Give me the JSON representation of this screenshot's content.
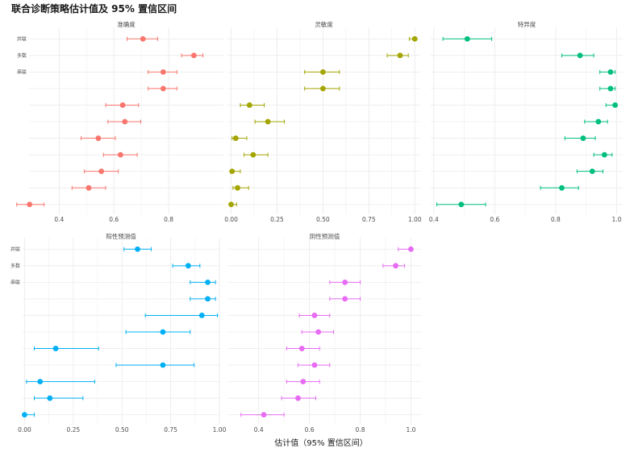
{
  "title": "联合诊断策略估计值及 95% 置信区间",
  "xlabel": "估计值（95% 置信区间）",
  "colors": {
    "sensitivity": "#f8766d",
    "recall": "#a3a500",
    "specificity": "#00bf7d",
    "ppv": "#00b0f6",
    "npv": "#e76bf3",
    "grid": "#ebebeb"
  },
  "y_labels": [
    "并联",
    "多数",
    "串联",
    "",
    "",
    "",
    "",
    "",
    "",
    "",
    ""
  ],
  "chart_data": [
    {
      "type": "scatter",
      "panel": "准确度",
      "color_key": "sensitivity",
      "xlim": [
        0.29,
        1.0
      ],
      "xticks": [
        0.4,
        0.6,
        0.8
      ],
      "xtick_labels": [
        "0.4",
        "0.6",
        "0.8"
      ],
      "points": [
        {
          "est": 0.706,
          "lo": 0.648,
          "hi": 0.76
        },
        {
          "est": 0.892,
          "lo": 0.847,
          "hi": 0.925
        },
        {
          "est": 0.78,
          "lo": 0.725,
          "hi": 0.83
        },
        {
          "est": 0.78,
          "lo": 0.725,
          "hi": 0.83
        },
        {
          "est": 0.632,
          "lo": 0.57,
          "hi": 0.69
        },
        {
          "est": 0.64,
          "lo": 0.578,
          "hi": 0.698
        },
        {
          "est": 0.543,
          "lo": 0.48,
          "hi": 0.605
        },
        {
          "est": 0.624,
          "lo": 0.562,
          "hi": 0.685
        },
        {
          "est": 0.554,
          "lo": 0.492,
          "hi": 0.616
        },
        {
          "est": 0.508,
          "lo": 0.447,
          "hi": 0.57
        },
        {
          "est": 0.292,
          "lo": 0.245,
          "hi": 0.345
        }
      ]
    },
    {
      "type": "scatter",
      "panel": "灵敏度",
      "color_key": "recall",
      "xlim": [
        -0.02,
        1.03
      ],
      "xticks": [
        0.0,
        0.25,
        0.5,
        0.75,
        1.0
      ],
      "xtick_labels": [
        "0.00",
        "0.25",
        "0.50",
        "0.75",
        "1.00"
      ],
      "points": [
        {
          "est": 1.0,
          "lo": 0.97,
          "hi": 1.0
        },
        {
          "est": 0.92,
          "lo": 0.85,
          "hi": 0.965
        },
        {
          "est": 0.5,
          "lo": 0.4,
          "hi": 0.59
        },
        {
          "est": 0.5,
          "lo": 0.4,
          "hi": 0.59
        },
        {
          "est": 0.1,
          "lo": 0.05,
          "hi": 0.18
        },
        {
          "est": 0.2,
          "lo": 0.13,
          "hi": 0.29
        },
        {
          "est": 0.025,
          "lo": 0.005,
          "hi": 0.085
        },
        {
          "est": 0.12,
          "lo": 0.07,
          "hi": 0.2
        },
        {
          "est": 0.005,
          "lo": 0.0,
          "hi": 0.05
        },
        {
          "est": 0.035,
          "lo": 0.01,
          "hi": 0.095
        },
        {
          "est": 0.0,
          "lo": 0.0,
          "hi": 0.03
        }
      ]
    },
    {
      "type": "scatter",
      "panel": "特异度",
      "color_key": "specificity",
      "xlim": [
        0.39,
        1.02
      ],
      "xticks": [
        0.4,
        0.6,
        0.8,
        1.0
      ],
      "xtick_labels": [
        "0.4",
        "0.6",
        "0.8",
        "1.0"
      ],
      "points": [
        {
          "est": 0.51,
          "lo": 0.43,
          "hi": 0.59
        },
        {
          "est": 0.88,
          "lo": 0.82,
          "hi": 0.925
        },
        {
          "est": 0.98,
          "lo": 0.945,
          "hi": 0.995
        },
        {
          "est": 0.98,
          "lo": 0.945,
          "hi": 0.995
        },
        {
          "est": 0.995,
          "lo": 0.965,
          "hi": 1.0
        },
        {
          "est": 0.94,
          "lo": 0.895,
          "hi": 0.97
        },
        {
          "est": 0.89,
          "lo": 0.83,
          "hi": 0.93
        },
        {
          "est": 0.96,
          "lo": 0.925,
          "hi": 0.985
        },
        {
          "est": 0.92,
          "lo": 0.87,
          "hi": 0.955
        },
        {
          "est": 0.82,
          "lo": 0.75,
          "hi": 0.875
        },
        {
          "est": 0.49,
          "lo": 0.41,
          "hi": 0.57
        }
      ]
    },
    {
      "type": "scatter",
      "panel": "阳性预测值",
      "color_key": "ppv",
      "xlim": [
        -0.01,
        1.0
      ],
      "xticks": [
        0.0,
        0.25,
        0.5,
        0.75,
        1.0
      ],
      "xtick_labels": [
        "0.00",
        "0.25",
        "0.50",
        "0.75",
        "1.00"
      ],
      "points": [
        {
          "est": 0.58,
          "lo": 0.51,
          "hi": 0.65
        },
        {
          "est": 0.84,
          "lo": 0.76,
          "hi": 0.9
        },
        {
          "est": 0.94,
          "lo": 0.85,
          "hi": 0.98
        },
        {
          "est": 0.94,
          "lo": 0.85,
          "hi": 0.98
        },
        {
          "est": 0.91,
          "lo": 0.62,
          "hi": 0.99
        },
        {
          "est": 0.71,
          "lo": 0.52,
          "hi": 0.85
        },
        {
          "est": 0.16,
          "lo": 0.05,
          "hi": 0.38
        },
        {
          "est": 0.71,
          "lo": 0.47,
          "hi": 0.87
        },
        {
          "est": 0.08,
          "lo": 0.01,
          "hi": 0.36
        },
        {
          "est": 0.13,
          "lo": 0.05,
          "hi": 0.3
        },
        {
          "est": 0.0,
          "lo": 0.0,
          "hi": 0.05
        }
      ]
    },
    {
      "type": "scatter",
      "panel": "阴性预测值",
      "color_key": "npv",
      "xlim": [
        0.28,
        1.04
      ],
      "xticks": [
        0.4,
        0.6,
        0.8,
        1.0
      ],
      "xtick_labels": [
        "0.4",
        "0.6",
        "0.8",
        "1.0"
      ],
      "points": [
        {
          "est": 1.0,
          "lo": 0.95,
          "hi": 1.0
        },
        {
          "est": 0.94,
          "lo": 0.89,
          "hi": 0.975
        },
        {
          "est": 0.74,
          "lo": 0.68,
          "hi": 0.8
        },
        {
          "est": 0.74,
          "lo": 0.68,
          "hi": 0.8
        },
        {
          "est": 0.62,
          "lo": 0.56,
          "hi": 0.68
        },
        {
          "est": 0.635,
          "lo": 0.57,
          "hi": 0.695
        },
        {
          "est": 0.57,
          "lo": 0.51,
          "hi": 0.64
        },
        {
          "est": 0.62,
          "lo": 0.555,
          "hi": 0.68
        },
        {
          "est": 0.575,
          "lo": 0.51,
          "hi": 0.64
        },
        {
          "est": 0.555,
          "lo": 0.49,
          "hi": 0.625
        },
        {
          "est": 0.42,
          "lo": 0.33,
          "hi": 0.5
        }
      ]
    }
  ]
}
